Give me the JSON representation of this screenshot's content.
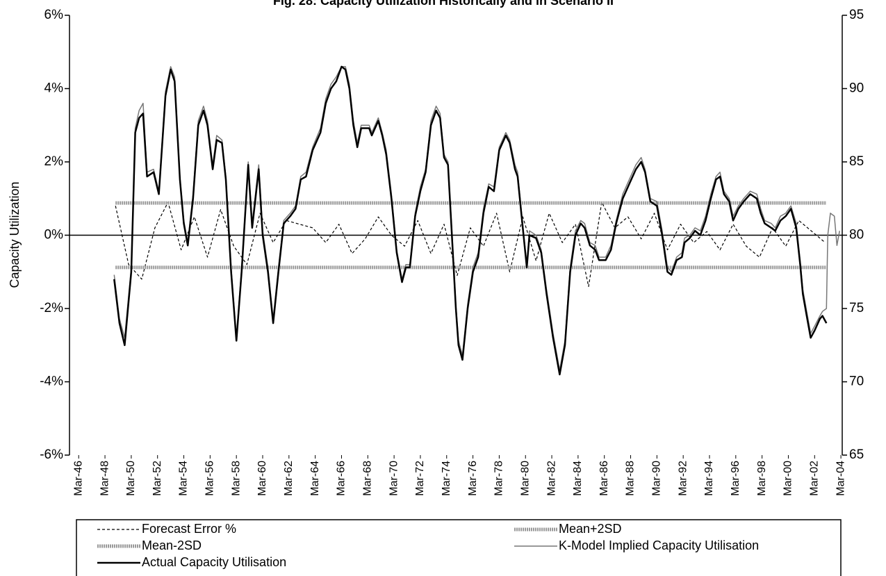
{
  "chart_data": {
    "type": "line",
    "title": "Fig. 28: Capacity Utilization Historically and in Scenario II",
    "y_label": "Capacity Utilization",
    "xlim": [
      1945.5,
      2004.3
    ],
    "xticks": [
      {
        "value": 1946.2,
        "label": "Mar-46"
      },
      {
        "value": 1948.2,
        "label": "Mar-48"
      },
      {
        "value": 1950.2,
        "label": "Mar-50"
      },
      {
        "value": 1952.2,
        "label": "Mar-52"
      },
      {
        "value": 1954.2,
        "label": "Mar-54"
      },
      {
        "value": 1956.2,
        "label": "Mar-56"
      },
      {
        "value": 1958.2,
        "label": "Mar-58"
      },
      {
        "value": 1960.2,
        "label": "Mar-60"
      },
      {
        "value": 1962.2,
        "label": "Mar-62"
      },
      {
        "value": 1964.2,
        "label": "Mar-64"
      },
      {
        "value": 1966.2,
        "label": "Mar-66"
      },
      {
        "value": 1968.2,
        "label": "Mar-68"
      },
      {
        "value": 1970.2,
        "label": "Mar-70"
      },
      {
        "value": 1972.2,
        "label": "Mar-72"
      },
      {
        "value": 1974.2,
        "label": "Mar-74"
      },
      {
        "value": 1976.2,
        "label": "Mar-76"
      },
      {
        "value": 1978.2,
        "label": "Mar-78"
      },
      {
        "value": 1980.2,
        "label": "Mar-80"
      },
      {
        "value": 1982.2,
        "label": "Mar-82"
      },
      {
        "value": 1984.2,
        "label": "Mar-84"
      },
      {
        "value": 1986.2,
        "label": "Mar-86"
      },
      {
        "value": 1988.2,
        "label": "Mar-88"
      },
      {
        "value": 1990.2,
        "label": "Mar-90"
      },
      {
        "value": 1992.2,
        "label": "Mar-92"
      },
      {
        "value": 1994.2,
        "label": "Mar-94"
      },
      {
        "value": 1996.2,
        "label": "Mar-96"
      },
      {
        "value": 1998.2,
        "label": "Mar-98"
      },
      {
        "value": 2000.2,
        "label": "Mar-00"
      },
      {
        "value": 2002.2,
        "label": "Mar-02"
      },
      {
        "value": 2004.2,
        "label": "Mar-04"
      }
    ],
    "ylim": [
      -6,
      6
    ],
    "yticks": [
      {
        "value": 6,
        "label": "6%"
      },
      {
        "value": 4,
        "label": "4%"
      },
      {
        "value": 2,
        "label": "2%"
      },
      {
        "value": 0,
        "label": "0%"
      },
      {
        "value": -2,
        "label": "-2%"
      },
      {
        "value": -4,
        "label": "-4%"
      },
      {
        "value": -6,
        "label": "-6%"
      }
    ],
    "y2lim": [
      65,
      95
    ],
    "y2ticks": [
      95,
      90,
      85,
      80,
      75,
      70,
      65
    ],
    "series": [
      {
        "name": "Forecast Error %",
        "color": "#000000",
        "line_style": "dashed",
        "axis": "y",
        "x": [
          1949,
          1950,
          1951,
          1952,
          1953,
          1954,
          1955,
          1956,
          1957,
          1958,
          1959,
          1960,
          1961,
          1962,
          1963,
          1964,
          1965,
          1966,
          1967,
          1968,
          1969,
          1970,
          1971,
          1972,
          1973,
          1974,
          1975,
          1976,
          1977,
          1978,
          1979,
          1980,
          1981,
          1982,
          1983,
          1984,
          1985,
          1986,
          1987,
          1988,
          1989,
          1990,
          1991,
          1992,
          1993,
          1994,
          1995,
          1996,
          1997,
          1998,
          1999,
          2000,
          2001,
          2002,
          2003
        ],
        "values": [
          0.8,
          -0.8,
          -1.2,
          0.2,
          0.9,
          -0.4,
          0.5,
          -0.6,
          0.7,
          -0.3,
          -0.8,
          0.6,
          -0.2,
          0.4,
          0.3,
          0.2,
          -0.2,
          0.3,
          -0.5,
          -0.1,
          0.5,
          0.0,
          -0.3,
          0.4,
          -0.5,
          0.3,
          -1.1,
          0.2,
          -0.3,
          0.6,
          -1.0,
          0.5,
          -0.7,
          0.6,
          -0.2,
          0.3,
          -1.4,
          0.9,
          0.2,
          0.5,
          -0.1,
          0.6,
          -0.4,
          0.3,
          -0.2,
          0.1,
          -0.4,
          0.3,
          -0.3,
          -0.6,
          0.2,
          -0.3,
          0.4,
          0.1,
          -0.2
        ]
      },
      {
        "name": "Mean+2SD",
        "color": "#999999",
        "line_style": "hatched",
        "axis": "y",
        "x": [
          1949.0,
          2003.1
        ],
        "values": [
          0.88,
          0.88
        ]
      },
      {
        "name": "Mean-2SD",
        "color": "#999999",
        "line_style": "hatched",
        "axis": "y",
        "x": [
          1949.0,
          2003.1
        ],
        "values": [
          -0.88,
          -0.88
        ]
      },
      {
        "name": "K-Model Implied Capacity Utilisation",
        "color": "#777777",
        "line_style": "solid",
        "axis": "y2",
        "x": [
          1948.9,
          1949.3,
          1949.7,
          1950.2,
          1950.5,
          1950.8,
          1951.1,
          1951.4,
          1951.9,
          1952.3,
          1952.8,
          1953.2,
          1953.5,
          1953.9,
          1954.2,
          1954.5,
          1954.9,
          1955.3,
          1955.7,
          1956.0,
          1956.4,
          1956.7,
          1957.1,
          1957.4,
          1957.8,
          1958.2,
          1958.6,
          1959.1,
          1959.4,
          1959.9,
          1960.2,
          1960.6,
          1961.0,
          1961.4,
          1961.8,
          1962.3,
          1962.7,
          1963.1,
          1963.5,
          1964.0,
          1964.6,
          1965.0,
          1965.4,
          1965.8,
          1966.2,
          1966.5,
          1966.8,
          1967.1,
          1967.4,
          1967.7,
          1968.3,
          1968.5,
          1969.0,
          1969.3,
          1969.6,
          1970.0,
          1970.4,
          1970.8,
          1971.1,
          1971.4,
          1971.8,
          1972.2,
          1972.6,
          1973.0,
          1973.4,
          1973.7,
          1974.0,
          1974.3,
          1974.6,
          1974.9,
          1975.1,
          1975.4,
          1975.8,
          1976.2,
          1976.6,
          1977.0,
          1977.4,
          1977.8,
          1978.2,
          1978.7,
          1979.0,
          1979.4,
          1979.6,
          1979.9,
          1980.3,
          1980.5,
          1981.0,
          1981.4,
          1981.8,
          1982.3,
          1982.8,
          1983.2,
          1983.6,
          1984.0,
          1984.4,
          1984.7,
          1985.1,
          1985.5,
          1985.8,
          1986.3,
          1986.7,
          1987.1,
          1987.6,
          1988.1,
          1988.6,
          1989.0,
          1989.3,
          1989.7,
          1990.2,
          1990.6,
          1991.0,
          1991.3,
          1991.7,
          1992.1,
          1992.3,
          1992.7,
          1993.1,
          1993.5,
          1993.9,
          1994.3,
          1994.7,
          1995.0,
          1995.3,
          1995.7,
          1996.0,
          1996.4,
          1996.8,
          1997.3,
          1997.8,
          1998.1,
          1998.4,
          1998.9,
          1999.2,
          1999.6,
          2000.0,
          2000.4,
          2000.8,
          2001.1,
          2001.3,
          2001.6,
          2001.9,
          2002.2,
          2002.6,
          2002.8,
          2003.1,
          2003.2,
          2003.4,
          2003.7,
          2003.9,
          2004.1
        ],
        "values": [
          77.3,
          74.3,
          73,
          77.8,
          87.3,
          88.5,
          89,
          84.3,
          84.5,
          83,
          89.8,
          91.5,
          90.8,
          84,
          81,
          79.5,
          82.8,
          87.8,
          88.8,
          87.8,
          84.8,
          86.8,
          86.5,
          84,
          77.8,
          73,
          77.8,
          85,
          80.8,
          84.8,
          80.3,
          77.8,
          74.3,
          77.8,
          81,
          81.5,
          82,
          84,
          84.3,
          86,
          87.3,
          89.3,
          90.3,
          90.8,
          91.5,
          91.5,
          90.3,
          87.8,
          86.3,
          87.5,
          87.5,
          87,
          88,
          87,
          85.8,
          82.8,
          79,
          77,
          78,
          78,
          81.5,
          83.3,
          84.5,
          87.8,
          88.8,
          88.3,
          85.5,
          85,
          80.3,
          75.3,
          72.8,
          71.8,
          75.3,
          77.8,
          78.8,
          81.8,
          83.5,
          83.3,
          86,
          87,
          86.5,
          84.8,
          84.3,
          81.5,
          78,
          80.3,
          80,
          79,
          76.3,
          73.3,
          70.8,
          72.8,
          77.8,
          80.3,
          81,
          80.8,
          79.5,
          79.3,
          78.5,
          78.5,
          79.3,
          81,
          82.8,
          83.8,
          84.8,
          85.3,
          84.5,
          82.5,
          82.3,
          80.3,
          77.8,
          77.5,
          78.5,
          78.8,
          79.8,
          80,
          80.5,
          80.3,
          81.3,
          82.8,
          84,
          84.3,
          83,
          82.5,
          81.3,
          82,
          82.5,
          83,
          82.8,
          81.8,
          81,
          80.8,
          80.5,
          81.3,
          81.5,
          82,
          80.8,
          78.3,
          76.3,
          74.8,
          73.3,
          73.8,
          74.5,
          74.8,
          75,
          80,
          81.5,
          81.3,
          79.3,
          80.3
        ]
      },
      {
        "name": "Actual Capacity Utilisation",
        "color": "#000000",
        "line_style": "solid",
        "axis": "y2",
        "x": [
          1948.9,
          1949.3,
          1949.7,
          1950.2,
          1950.5,
          1950.8,
          1951.1,
          1951.4,
          1951.9,
          1952.3,
          1952.8,
          1953.2,
          1953.5,
          1953.9,
          1954.2,
          1954.5,
          1954.9,
          1955.3,
          1955.7,
          1956.0,
          1956.4,
          1956.7,
          1957.1,
          1957.4,
          1957.8,
          1958.2,
          1958.6,
          1959.1,
          1959.4,
          1959.9,
          1960.2,
          1960.6,
          1961.0,
          1961.4,
          1961.8,
          1962.3,
          1962.7,
          1963.1,
          1963.5,
          1964.0,
          1964.6,
          1965.0,
          1965.4,
          1965.8,
          1966.2,
          1966.5,
          1966.8,
          1967.1,
          1967.4,
          1967.7,
          1968.3,
          1968.5,
          1969.0,
          1969.3,
          1969.6,
          1970.0,
          1970.4,
          1970.8,
          1971.1,
          1971.4,
          1971.8,
          1972.2,
          1972.6,
          1973.0,
          1973.4,
          1973.7,
          1974.0,
          1974.3,
          1974.6,
          1974.9,
          1975.1,
          1975.4,
          1975.8,
          1976.2,
          1976.6,
          1977.0,
          1977.4,
          1977.8,
          1978.2,
          1978.7,
          1979.0,
          1979.4,
          1979.6,
          1979.9,
          1980.3,
          1980.5,
          1981.0,
          1981.4,
          1981.8,
          1982.3,
          1982.8,
          1983.2,
          1983.6,
          1984.0,
          1984.4,
          1984.7,
          1985.1,
          1985.5,
          1985.8,
          1986.3,
          1986.7,
          1987.1,
          1987.6,
          1988.1,
          1988.6,
          1989.0,
          1989.3,
          1989.7,
          1990.2,
          1990.6,
          1991.0,
          1991.3,
          1991.7,
          1992.1,
          1992.3,
          1992.7,
          1993.1,
          1993.5,
          1993.9,
          1994.3,
          1994.7,
          1995.0,
          1995.3,
          1995.7,
          1996.0,
          1996.4,
          1996.8,
          1997.3,
          1997.8,
          1998.1,
          1998.4,
          1998.9,
          1999.2,
          1999.6,
          2000.0,
          2000.4,
          2000.8,
          2001.1,
          2001.3,
          2001.6,
          2001.9,
          2002.2,
          2002.6,
          2002.8,
          2003.1
        ],
        "values": [
          77,
          74,
          72.5,
          77.5,
          87,
          88,
          88.3,
          84,
          84.3,
          82.8,
          89.5,
          91.3,
          90.5,
          83.8,
          80.8,
          79.3,
          82.5,
          87.5,
          88.5,
          87.5,
          84.5,
          86.5,
          86.3,
          83.8,
          77.5,
          72.8,
          77.5,
          84.8,
          80.5,
          84.5,
          80,
          77.5,
          74,
          77.5,
          80.8,
          81.3,
          81.8,
          83.8,
          84,
          85.8,
          87,
          89,
          90,
          90.5,
          91.5,
          91.3,
          90,
          87.5,
          86,
          87.3,
          87.3,
          86.8,
          87.8,
          86.8,
          85.5,
          82.5,
          78.8,
          76.8,
          77.8,
          77.8,
          81.3,
          83,
          84.3,
          87.5,
          88.5,
          88,
          85.3,
          84.8,
          80,
          75,
          72.5,
          71.5,
          75,
          77.5,
          78.5,
          81.5,
          83.3,
          83,
          85.8,
          86.8,
          86.3,
          84.5,
          84,
          81.3,
          77.8,
          80,
          79.8,
          78.8,
          76,
          73,
          70.5,
          72.5,
          77.5,
          80,
          80.8,
          80.5,
          79.3,
          79,
          78.3,
          78.3,
          79,
          80.8,
          82.5,
          83.5,
          84.5,
          85,
          84.3,
          82.3,
          82,
          80,
          77.5,
          77.3,
          78.3,
          78.5,
          79.5,
          79.8,
          80.3,
          80,
          81,
          82.5,
          83.8,
          84,
          82.8,
          82.3,
          81,
          81.8,
          82.3,
          82.8,
          82.5,
          81.5,
          80.8,
          80.5,
          80.3,
          81,
          81.3,
          81.8,
          80.5,
          78,
          76,
          74.5,
          73,
          73.5,
          74.3,
          74.5,
          74
        ]
      }
    ]
  }
}
